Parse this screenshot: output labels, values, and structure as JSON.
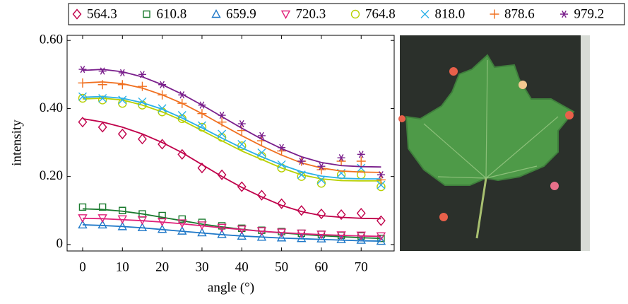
{
  "chart_data": {
    "type": "scatter",
    "x_label": "angle (°)",
    "y_label": "intensity",
    "x": [
      0,
      5,
      10,
      15,
      20,
      25,
      30,
      35,
      40,
      45,
      50,
      55,
      60,
      65,
      70,
      75
    ],
    "xlim": [
      -3.9,
      78.3
    ],
    "ylim": [
      -0.019,
      0.615
    ],
    "xticks": [
      0,
      10,
      20,
      30,
      40,
      50,
      60,
      70
    ],
    "yticks": [
      0,
      {
        "value": 0.2,
        "label": "0.20"
      },
      {
        "value": 0.4,
        "label": "0.40"
      },
      {
        "value": 0.6,
        "label": "0.60"
      }
    ],
    "series": [
      {
        "name": "564.3",
        "color": "#c0004a",
        "marker": "diamond",
        "values": [
          0.36,
          0.345,
          0.325,
          0.31,
          0.295,
          0.265,
          0.225,
          0.205,
          0.17,
          0.145,
          0.12,
          0.1,
          0.09,
          0.088,
          0.092,
          0.07
        ],
        "fit": [
          0.37,
          0.36,
          0.345,
          0.325,
          0.3,
          0.27,
          0.235,
          0.2,
          0.168,
          0.14,
          0.115,
          0.097,
          0.085,
          0.08,
          0.077,
          0.076
        ]
      },
      {
        "name": "610.8",
        "color": "#1a7a2e",
        "marker": "square",
        "values": [
          0.11,
          0.11,
          0.1,
          0.09,
          0.085,
          0.075,
          0.065,
          0.055,
          0.048,
          0.042,
          0.038,
          0.033,
          0.03,
          0.027,
          0.025,
          0.018
        ],
        "fit": [
          0.105,
          0.103,
          0.098,
          0.09,
          0.08,
          0.07,
          0.06,
          0.052,
          0.045,
          0.039,
          0.034,
          0.03,
          0.026,
          0.023,
          0.02,
          0.018
        ]
      },
      {
        "name": "659.9",
        "color": "#1f78c8",
        "marker": "triangle",
        "values": [
          0.058,
          0.058,
          0.053,
          0.05,
          0.045,
          0.04,
          0.035,
          0.03,
          0.025,
          0.022,
          0.02,
          0.018,
          0.017,
          0.015,
          0.013,
          0.01
        ],
        "fit": [
          0.058,
          0.056,
          0.053,
          0.049,
          0.044,
          0.039,
          0.034,
          0.029,
          0.025,
          0.022,
          0.019,
          0.017,
          0.015,
          0.013,
          0.011,
          0.01
        ]
      },
      {
        "name": "720.3",
        "color": "#e0207a",
        "marker": "triangle-down",
        "values": [
          0.078,
          0.078,
          0.075,
          0.072,
          0.068,
          0.063,
          0.057,
          0.05,
          0.045,
          0.04,
          0.036,
          0.033,
          0.03,
          0.028,
          0.027,
          0.025
        ],
        "fit": [
          0.077,
          0.076,
          0.073,
          0.07,
          0.066,
          0.061,
          0.055,
          0.049,
          0.044,
          0.039,
          0.035,
          0.032,
          0.029,
          0.027,
          0.025,
          0.024
        ]
      },
      {
        "name": "764.8",
        "color": "#b8d000",
        "marker": "circle",
        "values": [
          0.43,
          0.425,
          0.415,
          0.41,
          0.39,
          0.37,
          0.345,
          0.315,
          0.29,
          0.26,
          0.225,
          0.2,
          0.18,
          0.205,
          0.205,
          0.17
        ],
        "fit": [
          0.428,
          0.43,
          0.425,
          0.41,
          0.39,
          0.365,
          0.335,
          0.305,
          0.275,
          0.25,
          0.225,
          0.205,
          0.193,
          0.188,
          0.187,
          0.187
        ]
      },
      {
        "name": "818.0",
        "color": "#2ab0e8",
        "marker": "cross",
        "values": [
          0.435,
          0.43,
          0.425,
          0.42,
          0.4,
          0.38,
          0.35,
          0.325,
          0.295,
          0.27,
          0.235,
          0.205,
          0.19,
          0.21,
          0.225,
          0.175
        ],
        "fit": [
          0.433,
          0.435,
          0.43,
          0.417,
          0.398,
          0.372,
          0.343,
          0.313,
          0.284,
          0.258,
          0.234,
          0.214,
          0.201,
          0.195,
          0.193,
          0.193
        ]
      },
      {
        "name": "878.6",
        "color": "#f07020",
        "marker": "plus",
        "values": [
          0.475,
          0.47,
          0.47,
          0.465,
          0.44,
          0.415,
          0.385,
          0.36,
          0.335,
          0.305,
          0.275,
          0.245,
          0.22,
          0.245,
          0.245,
          0.19
        ],
        "fit": [
          0.475,
          0.478,
          0.473,
          0.46,
          0.44,
          0.415,
          0.385,
          0.352,
          0.32,
          0.29,
          0.263,
          0.24,
          0.225,
          0.216,
          0.213,
          0.212
        ]
      },
      {
        "name": "979.2",
        "color": "#7a1f8c",
        "marker": "asterisk",
        "values": [
          0.515,
          0.51,
          0.505,
          0.5,
          0.47,
          0.44,
          0.41,
          0.38,
          0.355,
          0.32,
          0.285,
          0.245,
          0.23,
          0.255,
          0.265,
          0.205
        ],
        "fit": [
          0.512,
          0.515,
          0.508,
          0.493,
          0.47,
          0.442,
          0.41,
          0.376,
          0.342,
          0.31,
          0.282,
          0.258,
          0.241,
          0.232,
          0.229,
          0.228
        ]
      }
    ]
  }
}
